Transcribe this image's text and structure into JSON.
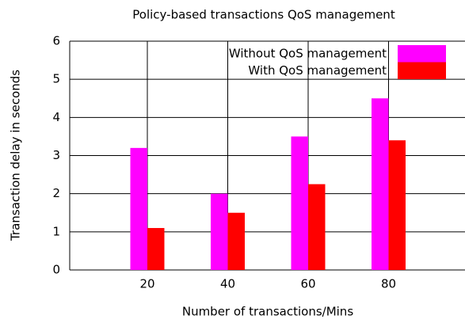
{
  "chart_data": {
    "type": "bar",
    "title": "Policy-based transactions QoS management",
    "xlabel": "Number of transactions/Mins",
    "ylabel": "Transaction delay in seconds",
    "categories": [
      "20",
      "40",
      "60",
      "80"
    ],
    "series": [
      {
        "name": "Without QoS management",
        "color": "#ff00ff",
        "values": [
          3.2,
          2.0,
          3.5,
          4.5
        ]
      },
      {
        "name": "With QoS management",
        "color": "#ff0000",
        "values": [
          1.1,
          1.5,
          2.25,
          3.4
        ]
      }
    ],
    "ylim": [
      0,
      6
    ],
    "yticks": [
      0,
      1,
      2,
      3,
      4,
      5,
      6
    ],
    "grid": true,
    "legend": "top-right"
  }
}
